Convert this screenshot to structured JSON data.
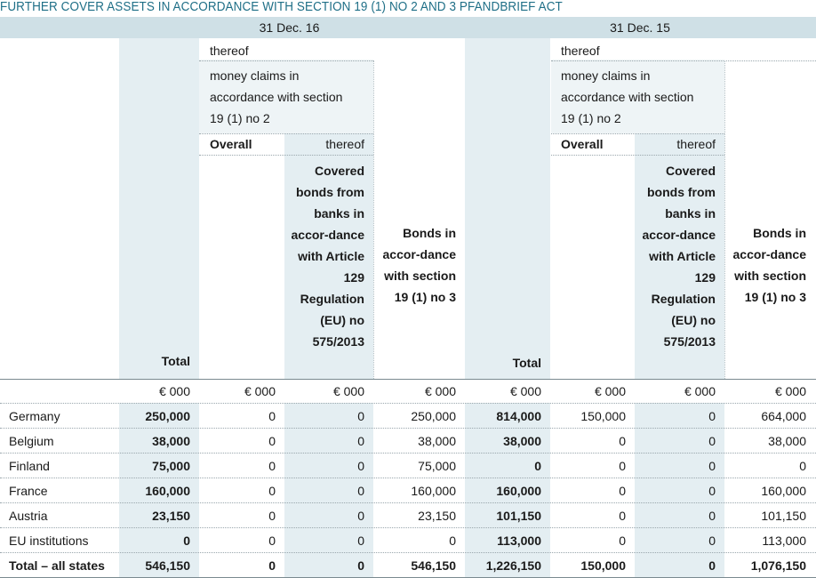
{
  "title": "FURTHER COVER ASSETS IN ACCORDANCE WITH SECTION 19 (1) NO 2 AND 3 PFANDBRIEF ACT",
  "periods": [
    "31 Dec. 16",
    "31 Dec. 15"
  ],
  "headers": {
    "thereof": "thereof",
    "money_claims": "money claims in accordance with section 19 (1) no 2",
    "overall": "Overall",
    "thereof_sub": "thereof",
    "covered_bonds": "Covered bonds from banks in accor-dance with Article 129 Regulation (EU) no 575/2013",
    "bonds_section": "Bonds in accor-dance with section 19 (1) no 3",
    "total": "Total"
  },
  "unit": "€ 000",
  "table": {
    "rows": [
      {
        "label": "Germany",
        "values": [
          "250,000",
          "0",
          "0",
          "250,000",
          "814,000",
          "150,000",
          "0",
          "664,000"
        ]
      },
      {
        "label": "Belgium",
        "values": [
          "38,000",
          "0",
          "0",
          "38,000",
          "38,000",
          "0",
          "0",
          "38,000"
        ]
      },
      {
        "label": "Finland",
        "values": [
          "75,000",
          "0",
          "0",
          "75,000",
          "0",
          "0",
          "0",
          "0"
        ]
      },
      {
        "label": "France",
        "values": [
          "160,000",
          "0",
          "0",
          "160,000",
          "160,000",
          "0",
          "0",
          "160,000"
        ]
      },
      {
        "label": "Austria",
        "values": [
          "23,150",
          "0",
          "0",
          "23,150",
          "101,150",
          "0",
          "0",
          "101,150"
        ]
      },
      {
        "label": "EU institutions",
        "values": [
          "0",
          "0",
          "0",
          "0",
          "113,000",
          "0",
          "0",
          "113,000"
        ]
      }
    ],
    "total_row": {
      "label": "Total – all states",
      "values": [
        "546,150",
        "0",
        "0",
        "546,150",
        "1,226,150",
        "150,000",
        "0",
        "1,076,150"
      ]
    }
  }
}
